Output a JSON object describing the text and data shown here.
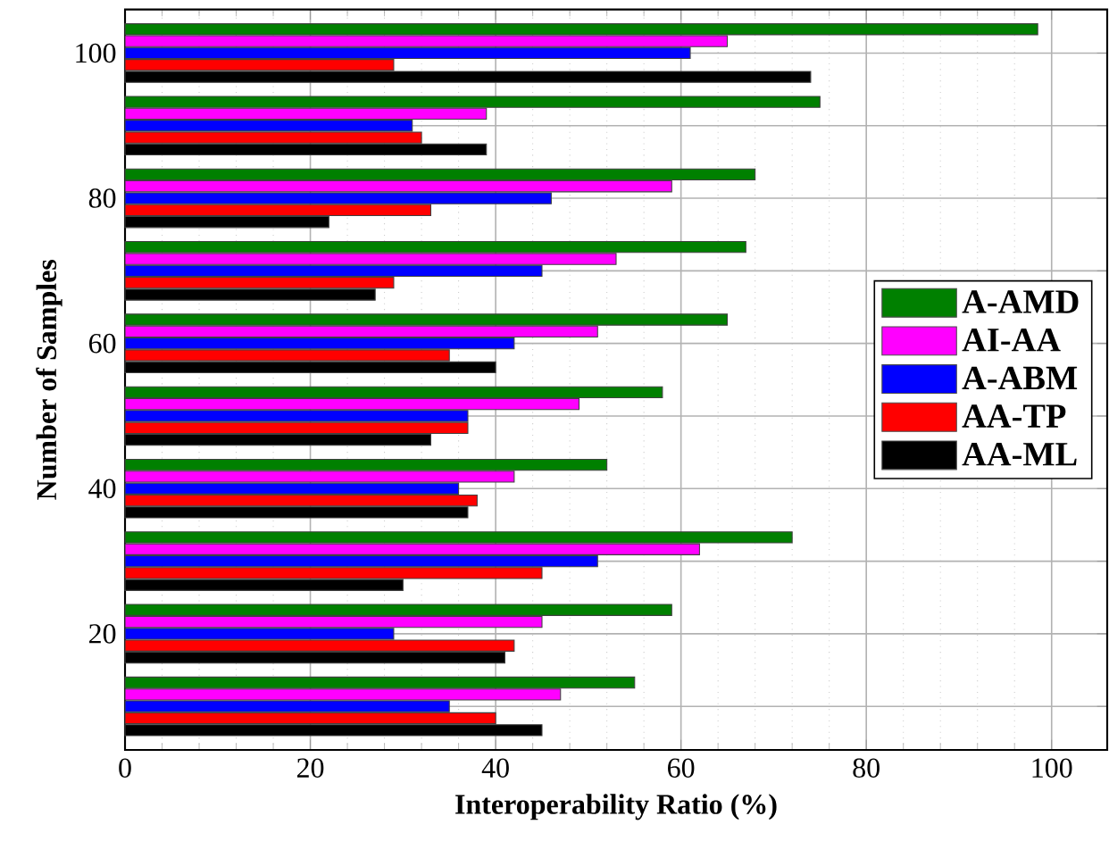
{
  "chart_data": {
    "type": "bar",
    "orientation": "horizontal",
    "xlabel": "Interoperability Ratio (%)",
    "ylabel": "Number of Samples",
    "categories": [
      "100",
      null,
      "80",
      null,
      "60",
      null,
      "40",
      null,
      "20",
      null
    ],
    "series": [
      {
        "name": "A-AMD",
        "color": "#008000",
        "values": [
          98.5,
          75,
          68,
          67,
          65,
          58,
          52,
          72,
          59,
          55
        ]
      },
      {
        "name": "AI-AA",
        "color": "#ff00ff",
        "values": [
          65,
          39,
          59,
          53,
          51,
          49,
          42,
          62,
          45,
          47
        ]
      },
      {
        "name": "A-ABM",
        "color": "#0000ff",
        "values": [
          61,
          31,
          46,
          45,
          42,
          37,
          36,
          51,
          29,
          35
        ]
      },
      {
        "name": "AA-TP",
        "color": "#ff0000",
        "values": [
          29,
          32,
          33,
          29,
          35,
          37,
          38,
          45,
          42,
          40
        ]
      },
      {
        "name": "AA-ML",
        "color": "#000000",
        "values": [
          74,
          39,
          22,
          27,
          40,
          33,
          37,
          30,
          41,
          45
        ]
      }
    ],
    "xlim": [
      0,
      106
    ],
    "xticks": [
      0,
      20,
      40,
      60,
      80,
      100
    ],
    "grid": true,
    "legend": "right"
  }
}
